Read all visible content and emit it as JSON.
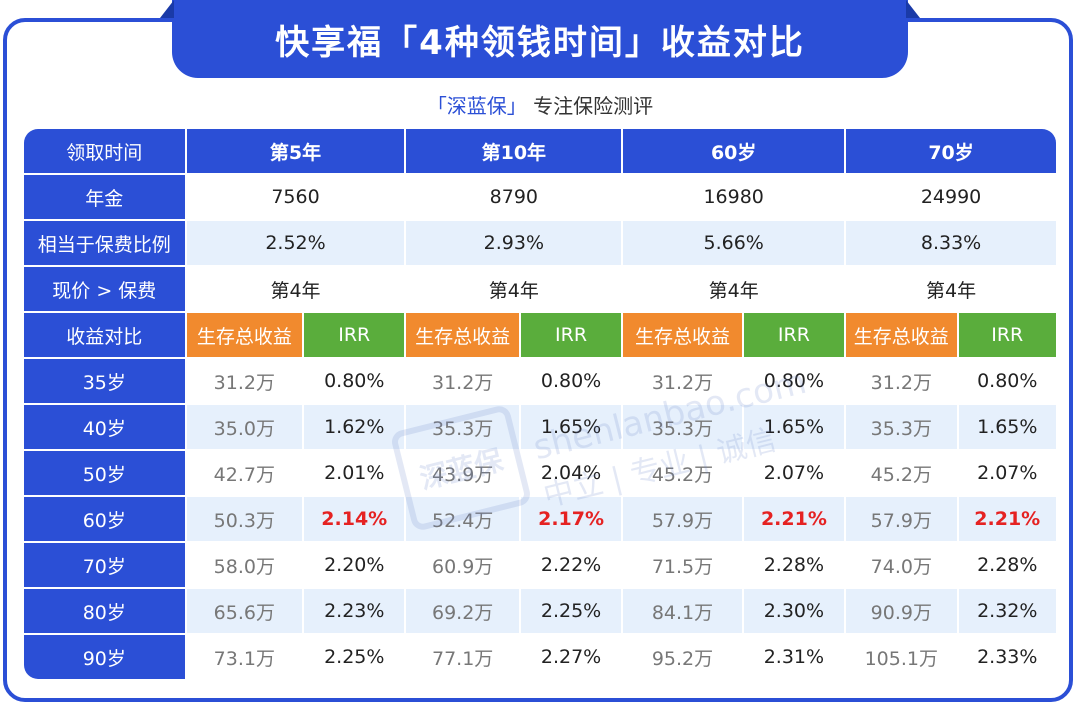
{
  "title": "快享福「4种领钱时间」收益对比",
  "subtitle": {
    "brand": "「深蓝保」",
    "text": "专注保险测评"
  },
  "watermark": {
    "logo": "深蓝保",
    "url": "shenlanbao.com",
    "slogan": "中立 | 专业 | 诚信"
  },
  "header": {
    "label": "领取时间",
    "cols": [
      "第5年",
      "第10年",
      "60岁",
      "70岁"
    ]
  },
  "info_rows": [
    {
      "label": "年金",
      "values": [
        "7560",
        "8790",
        "16980",
        "24990"
      ]
    },
    {
      "label": "相当于保费比例",
      "values": [
        "2.52%",
        "2.93%",
        "5.66%",
        "8.33%"
      ]
    },
    {
      "label": "现价 > 保费",
      "values": [
        "第4年",
        "第4年",
        "第4年",
        "第4年"
      ]
    }
  ],
  "compare": {
    "label": "收益对比",
    "sub1": "生存总收益",
    "sub2": "IRR"
  },
  "data_rows": [
    {
      "age": "35岁",
      "cells": [
        "31.2万",
        "0.80%",
        "31.2万",
        "0.80%",
        "31.2万",
        "0.80%",
        "31.2万",
        "0.80%"
      ]
    },
    {
      "age": "40岁",
      "cells": [
        "35.0万",
        "1.62%",
        "35.3万",
        "1.65%",
        "35.3万",
        "1.65%",
        "35.3万",
        "1.65%"
      ]
    },
    {
      "age": "50岁",
      "cells": [
        "42.7万",
        "2.01%",
        "43.9万",
        "2.04%",
        "45.2万",
        "2.07%",
        "45.2万",
        "2.07%"
      ]
    },
    {
      "age": "60岁",
      "cells": [
        "50.3万",
        "2.14%",
        "52.4万",
        "2.17%",
        "57.9万",
        "2.21%",
        "57.9万",
        "2.21%"
      ]
    },
    {
      "age": "70岁",
      "cells": [
        "58.0万",
        "2.20%",
        "60.9万",
        "2.22%",
        "71.5万",
        "2.28%",
        "74.0万",
        "2.28%"
      ]
    },
    {
      "age": "80岁",
      "cells": [
        "65.6万",
        "2.23%",
        "69.2万",
        "2.25%",
        "84.1万",
        "2.30%",
        "90.9万",
        "2.32%"
      ]
    },
    {
      "age": "90岁",
      "cells": [
        "73.1万",
        "2.25%",
        "77.1万",
        "2.27%",
        "95.2万",
        "2.31%",
        "105.1万",
        "2.33%"
      ]
    }
  ],
  "colors": {
    "primary": "#2b4fd6",
    "orange": "#f18a2e",
    "green": "#5aad3c",
    "highlight": "#e52222",
    "stripe": "#e6f0fc"
  }
}
